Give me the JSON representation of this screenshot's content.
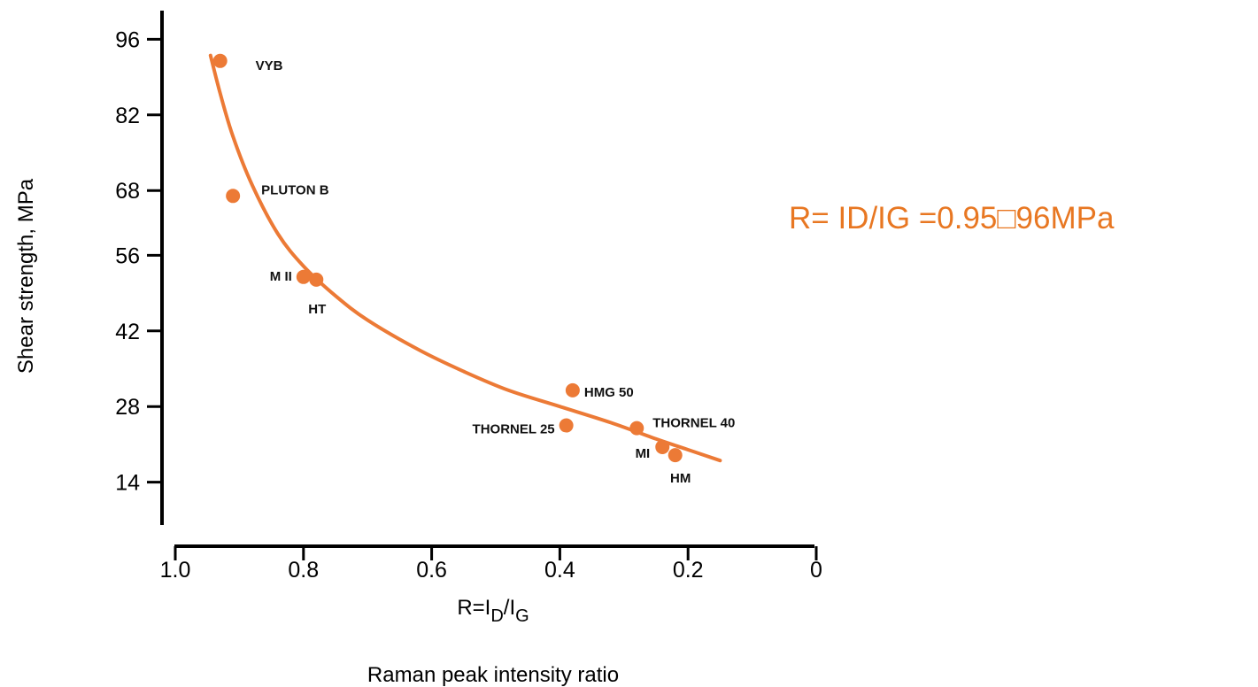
{
  "chart_data": {
    "type": "scatter",
    "ylabel": "Shear strength, MPa",
    "xlabel_parts": {
      "prefix": "R=I",
      "sub1": "D",
      "slash": "/I",
      "sub2": "G"
    },
    "xlabel_secondary": "Raman peak intensity ratio",
    "x_reversed": true,
    "xlim": [
      1.0,
      0
    ],
    "ylim": [
      0,
      100
    ],
    "x_ticks": [
      {
        "value": 1.0,
        "label": "1.0"
      },
      {
        "value": 0.8,
        "label": "0.8"
      },
      {
        "value": 0.6,
        "label": "0.6"
      },
      {
        "value": 0.4,
        "label": "0.4"
      },
      {
        "value": 0.2,
        "label": "0.2"
      },
      {
        "value": 0,
        "label": "0"
      }
    ],
    "y_ticks": [
      {
        "value": 14,
        "label": "14"
      },
      {
        "value": 28,
        "label": "28"
      },
      {
        "value": 42,
        "label": "42"
      },
      {
        "value": 56,
        "label": "56"
      },
      {
        "value": 68,
        "label": "68"
      },
      {
        "value": 82,
        "label": "82"
      },
      {
        "value": 96,
        "label": "96"
      }
    ],
    "points": [
      {
        "label": "VYB",
        "x": 0.93,
        "y": 92
      },
      {
        "label": "PLUTON B",
        "x": 0.91,
        "y": 67
      },
      {
        "label": "M II",
        "x": 0.8,
        "y": 52
      },
      {
        "label": "HT",
        "x": 0.78,
        "y": 51.5
      },
      {
        "label": "HMG 50",
        "x": 0.38,
        "y": 31
      },
      {
        "label": "THORNEL 25",
        "x": 0.39,
        "y": 24.5
      },
      {
        "label": "THORNEL 40",
        "x": 0.28,
        "y": 24
      },
      {
        "label": "MI",
        "x": 0.24,
        "y": 20.5
      },
      {
        "label": "HM",
        "x": 0.22,
        "y": 19
      }
    ],
    "curve": [
      {
        "x": 0.945,
        "y": 93
      },
      {
        "x": 0.93,
        "y": 86
      },
      {
        "x": 0.91,
        "y": 78
      },
      {
        "x": 0.88,
        "y": 69
      },
      {
        "x": 0.84,
        "y": 60
      },
      {
        "x": 0.8,
        "y": 54
      },
      {
        "x": 0.75,
        "y": 48.5
      },
      {
        "x": 0.7,
        "y": 44
      },
      {
        "x": 0.62,
        "y": 38.5
      },
      {
        "x": 0.55,
        "y": 34.5
      },
      {
        "x": 0.48,
        "y": 31
      },
      {
        "x": 0.4,
        "y": 28
      },
      {
        "x": 0.32,
        "y": 25
      },
      {
        "x": 0.25,
        "y": 22
      },
      {
        "x": 0.2,
        "y": 20
      },
      {
        "x": 0.15,
        "y": 18
      }
    ],
    "colors": {
      "points": "#ec7a36",
      "curve": "#ec7a36",
      "axis": "#000000"
    }
  },
  "annotation": {
    "text": "R= ID/IG =0.95□96MPa",
    "color": "#e87722"
  }
}
